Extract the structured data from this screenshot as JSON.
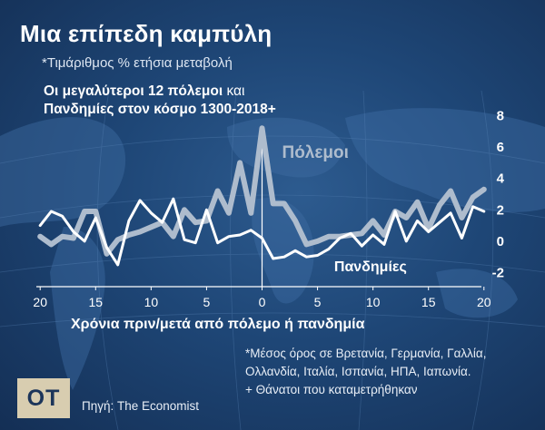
{
  "header": {
    "title": "Μια επίπεδη καμπύλη",
    "subtitle": "*Τιμάριθμος % ετήσια μεταβολή",
    "chart_title_line1_main": "Οι μεγαλύτεροι 12 πόλεμοι",
    "chart_title_line1_suffix": " και",
    "chart_title_line2": "Πανδημίες στον κόσμο 1300-2018+"
  },
  "footer": {
    "notes": [
      "*Μέσος όρος σε Βρετανία, Γερμανία, Γαλλία,",
      "Ολλανδία, Ιταλία, Ισπανία, ΗΠΑ, Ιαπωνία.",
      "+ Θάνατοι που καταμετρήθηκαν"
    ],
    "source": "Πηγή: The Economist",
    "logo": "OT"
  },
  "colors": {
    "background": "#1e4676",
    "wars_line": "#aebccd",
    "pandemics_line": "#ffffff",
    "text": "#ffffff"
  },
  "chart_data": {
    "type": "line",
    "title": "Οι μεγαλύτεροι 12 πόλεμοι και Πανδημίες στον κόσμο 1300-2018+",
    "xlabel": "Χρόνια πριν/μετά από πόλεμο ή πανδημία",
    "ylabel": "",
    "x": [
      -20,
      -19,
      -18,
      -17,
      -16,
      -15,
      -14,
      -13,
      -12,
      -11,
      -10,
      -9,
      -8,
      -7,
      -6,
      -5,
      -4,
      -3,
      -2,
      -1,
      0,
      1,
      2,
      3,
      4,
      5,
      6,
      7,
      8,
      9,
      10,
      11,
      12,
      13,
      14,
      15,
      16,
      17,
      18,
      19,
      20
    ],
    "xlim": [
      -21,
      21
    ],
    "ylim": [
      -2.2,
      8.2
    ],
    "x_tick_values": [
      -20,
      -15,
      -10,
      -5,
      0,
      5,
      10,
      15,
      20
    ],
    "x_tick_labels": [
      "20",
      "15",
      "10",
      "5",
      "0",
      "5",
      "10",
      "15",
      "20"
    ],
    "y_ticks": [
      -2,
      0,
      2,
      4,
      6,
      8
    ],
    "y_tick_labels": [
      "-2",
      "0",
      "2",
      "4",
      "6",
      "8"
    ],
    "grid": false,
    "series": [
      {
        "name": "Πόλεμοι",
        "label": "Πόλεμοι",
        "values": [
          0.3,
          -0.2,
          0.3,
          0.2,
          1.9,
          1.9,
          -0.8,
          0.1,
          0.4,
          0.6,
          0.9,
          1.2,
          0.3,
          2.0,
          1.2,
          1.3,
          3.2,
          1.8,
          5.0,
          1.8,
          7.2,
          2.4,
          2.4,
          1.3,
          -0.2,
          0.0,
          0.3,
          0.3,
          0.4,
          0.5,
          1.3,
          0.4,
          1.9,
          1.5,
          2.5,
          0.8,
          2.3,
          3.2,
          1.5,
          2.8,
          3.3
        ]
      },
      {
        "name": "Πανδημίες",
        "label": "Πανδημίες",
        "values": [
          1.0,
          1.9,
          1.6,
          0.6,
          0.0,
          1.5,
          -0.4,
          -1.5,
          1.3,
          2.6,
          1.8,
          1.2,
          2.7,
          0.1,
          -0.1,
          2.0,
          -0.1,
          0.3,
          0.4,
          0.7,
          0.2,
          -1.1,
          -1.0,
          -0.6,
          -1.0,
          -0.9,
          -0.5,
          0.2,
          0.5,
          -0.3,
          0.4,
          -0.2,
          1.9,
          0.0,
          1.3,
          0.6,
          1.2,
          1.8,
          0.2,
          2.2,
          1.9
        ]
      }
    ]
  }
}
